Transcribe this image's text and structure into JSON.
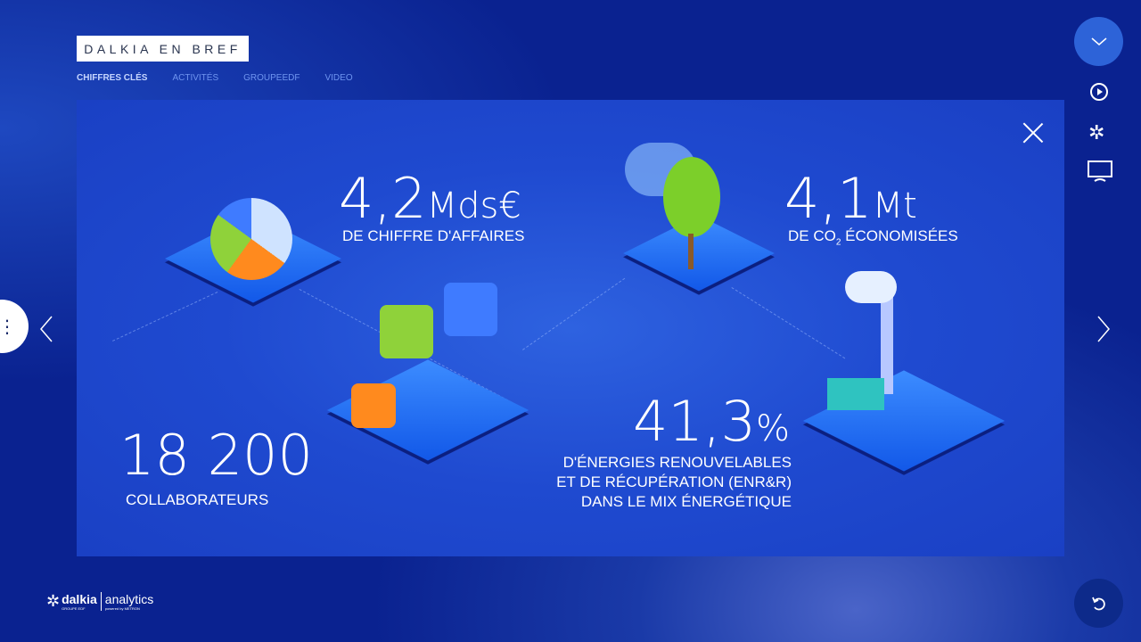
{
  "header": {
    "title": "DALKIA EN BREF",
    "tabs": [
      {
        "label": "CHIFFRES CLÉS",
        "active": true
      },
      {
        "label": "ACTIVITÉS"
      },
      {
        "label": "GROUPEEDF"
      },
      {
        "label": "VIDEO"
      }
    ]
  },
  "stats": {
    "revenue": {
      "value": "4,2",
      "unit": "Mds€",
      "label": "DE CHIFFRE D'AFFAIRES"
    },
    "co2": {
      "value": "4,1",
      "unit": "Mt",
      "label_pre": "DE CO",
      "label_sub": "2",
      "label_post": " ÉCONOMISÉES"
    },
    "employees": {
      "value": "18 200",
      "label": "COLLABORATEURS"
    },
    "renewables": {
      "value": "41,3",
      "unit": "%",
      "label_lines": [
        "D'ÉNERGIES RENOUVELABLES",
        "ET DE RÉCUPÉRATION (ENR&R)",
        "DANS LE MIX ÉNERGÉTIQUE"
      ]
    }
  },
  "footer": {
    "brand": "dalkia",
    "brand_sub": "GROUPE EDF",
    "product": "analytics",
    "powered": "powered by METRON"
  },
  "icons": {
    "top": "chevron-down-icon",
    "play": "play-circle-icon",
    "dalkia": "dalkia-logo-icon",
    "screen": "monitor-icon",
    "reset": "rotate-ccw-icon",
    "menu": "vertical-dots-icon",
    "prev": "chevron-left-icon",
    "next": "chevron-right-icon",
    "close": "close-icon"
  },
  "colors": {
    "accent": "#2d63d8",
    "background": "#0a2290"
  }
}
